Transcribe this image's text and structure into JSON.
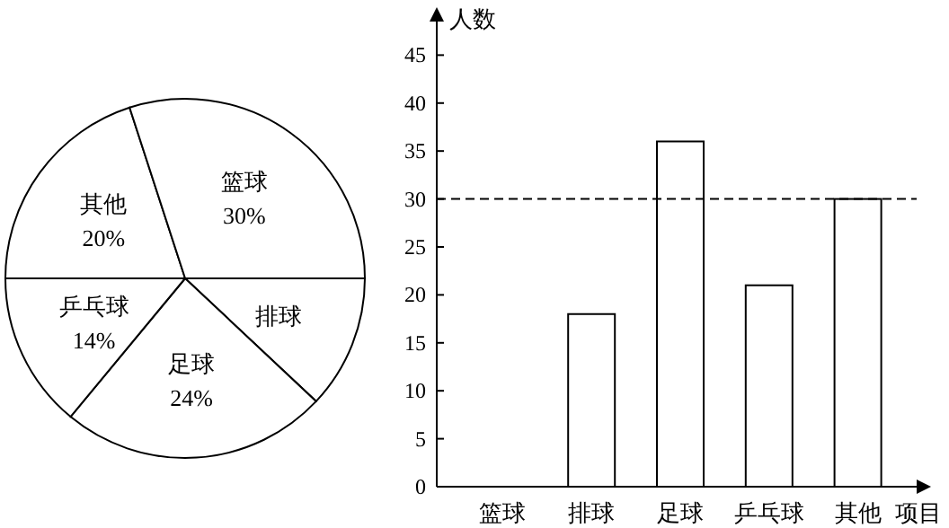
{
  "chart_data": [
    {
      "type": "pie",
      "categories": [
        "其他",
        "篮球",
        "排球",
        "足球",
        "乒乓球"
      ],
      "values": [
        20,
        30,
        12,
        24,
        14
      ],
      "colors": [
        "#ffffff",
        "#ffffff",
        "#ffffff",
        "#ffffff",
        "#ffffff"
      ],
      "value_labels": [
        "20%",
        "30%",
        null,
        "24%",
        "14%"
      ]
    },
    {
      "type": "bar",
      "categories": [
        "篮球",
        "排球",
        "足球",
        "乒乓球",
        "其他"
      ],
      "values": [
        null,
        18,
        36,
        21,
        30
      ],
      "color": "#ffffff",
      "xlabel": "项目",
      "ylabel": "人数",
      "ylim": [
        0,
        48.5
      ],
      "yticks": [
        0,
        5,
        10,
        15,
        20,
        25,
        30,
        35,
        40,
        45
      ],
      "ref_lines": [
        {
          "axis": "y",
          "value": 30,
          "line_style": "dashed",
          "color": "#000000"
        }
      ],
      "grid": false
    }
  ]
}
